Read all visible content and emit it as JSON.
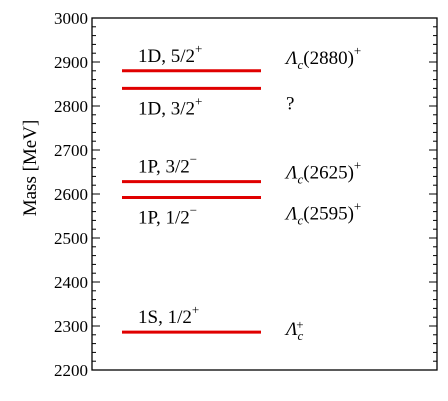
{
  "chart_data": {
    "type": "level-diagram",
    "title": "",
    "ylabel": "Mass [MeV]",
    "xlabel": "",
    "ylim": [
      2200,
      3000
    ],
    "yticks": [
      2200,
      2300,
      2400,
      2500,
      2600,
      2700,
      2800,
      2900,
      3000
    ],
    "grid": false,
    "line_color": "#e00000",
    "levels": [
      {
        "mass": 2880,
        "label_main": "1D, 5/2",
        "label_sup": "+",
        "label_position": "above",
        "state": {
          "name": "Λ",
          "sub": "c",
          "text": "(2880)",
          "sup": "+"
        }
      },
      {
        "mass": 2840,
        "label_main": "1D, 3/2",
        "label_sup": "+",
        "label_position": "below",
        "state": {
          "name": "",
          "sub": "",
          "text": "?",
          "sup": ""
        }
      },
      {
        "mass": 2628,
        "label_main": "1P, 3/2",
        "label_sup": "−",
        "label_position": "above",
        "state": {
          "name": "Λ",
          "sub": "c",
          "text": "(2625)",
          "sup": "+"
        }
      },
      {
        "mass": 2592,
        "label_main": "1P, 1/2",
        "label_sup": "−",
        "label_position": "below",
        "state": {
          "name": "Λ",
          "sub": "c",
          "text": "(2595)",
          "sup": "+"
        }
      },
      {
        "mass": 2286,
        "label_main": "1S, 1/2",
        "label_sup": "+",
        "label_position": "above",
        "state": {
          "name": "Λ",
          "sub": "c",
          "text": "",
          "sup": "+"
        }
      }
    ]
  }
}
